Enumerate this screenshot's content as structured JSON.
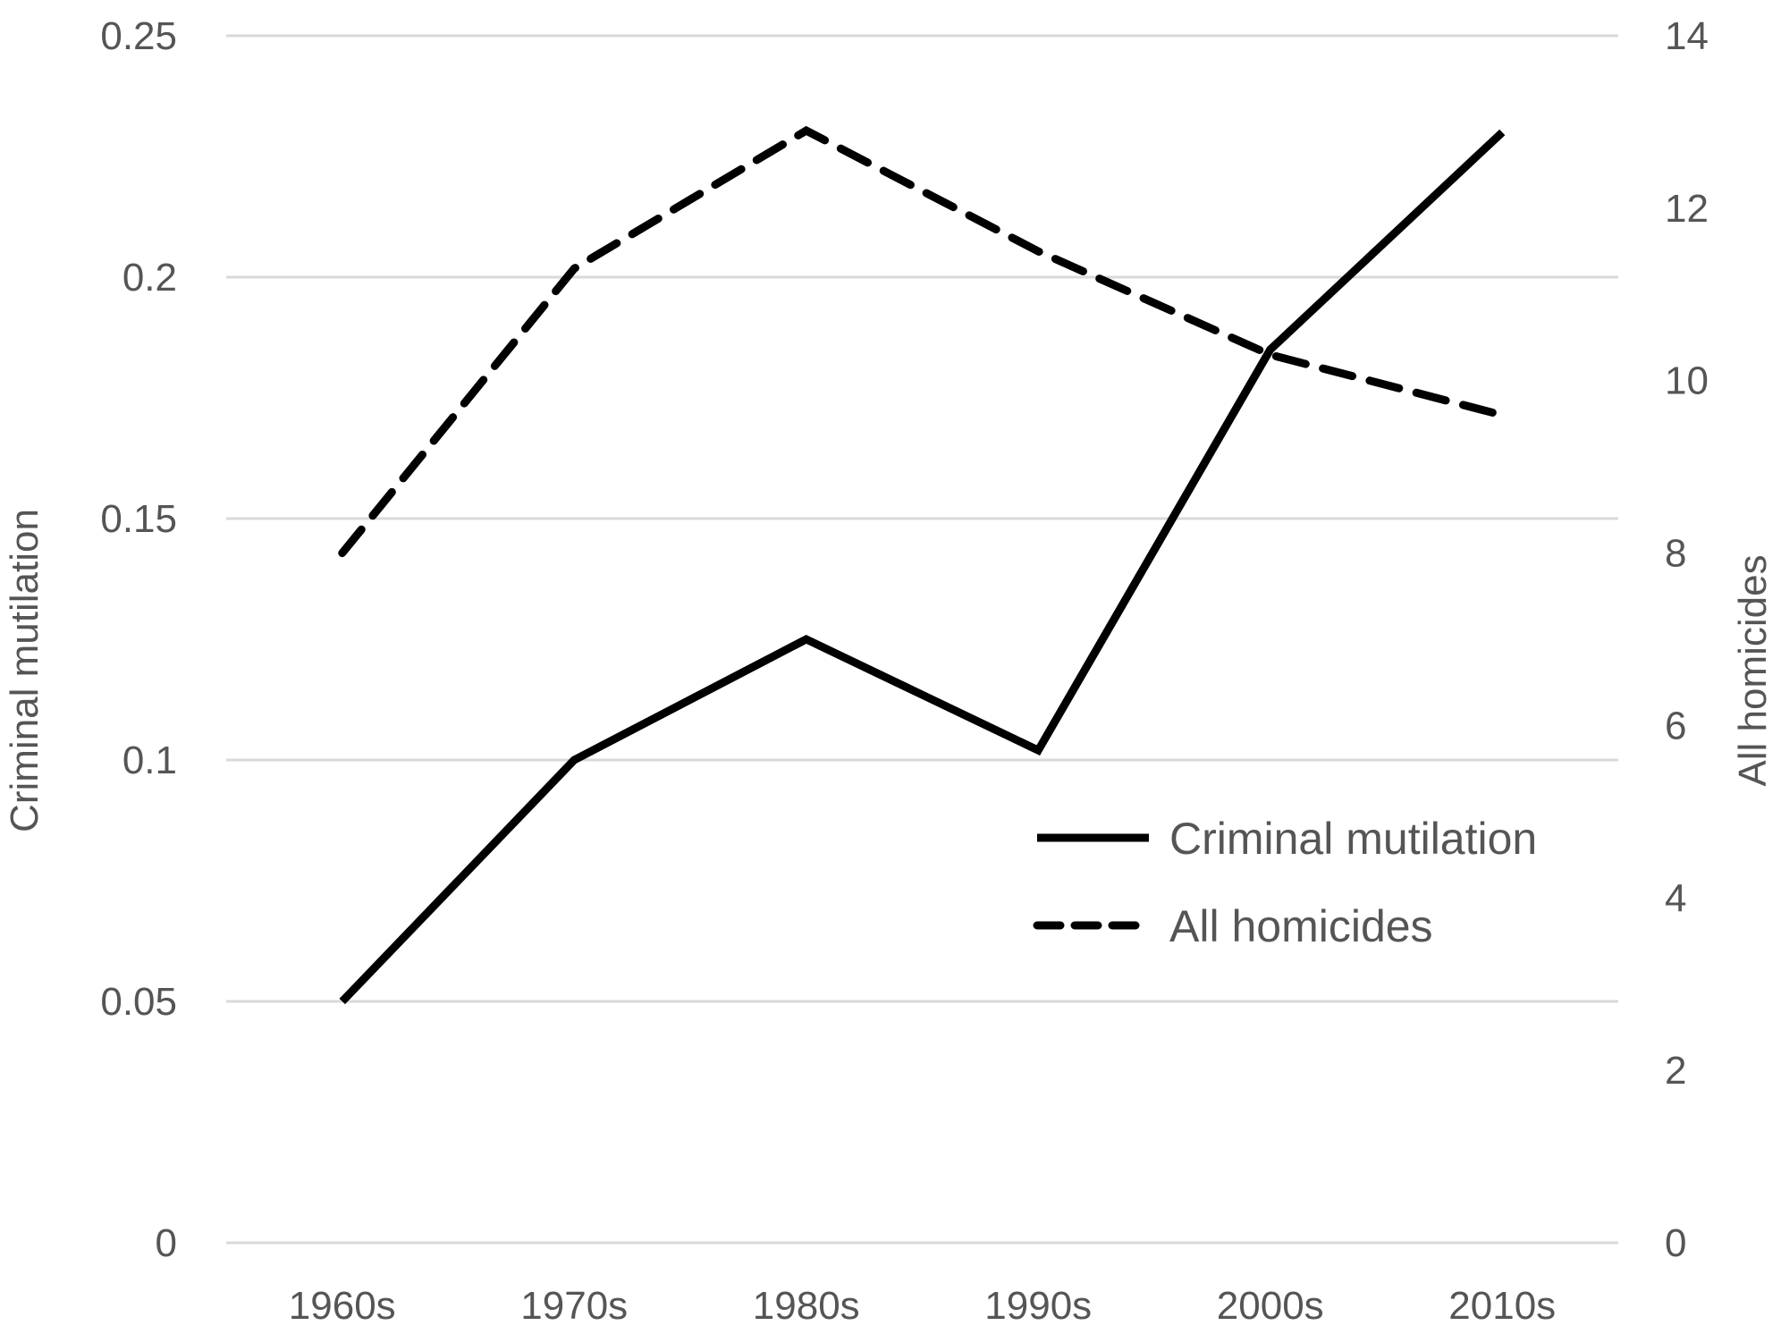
{
  "chart_data": {
    "type": "line",
    "categories": [
      "1960s",
      "1970s",
      "1980s",
      "1990s",
      "2000s",
      "2010s"
    ],
    "series": [
      {
        "name": "Criminal mutilation",
        "axis": "left",
        "style": "solid",
        "color": "#000000",
        "values": [
          0.05,
          0.1,
          0.125,
          0.102,
          0.185,
          0.23
        ]
      },
      {
        "name": "All homicides",
        "axis": "right",
        "style": "dashed",
        "color": "#000000",
        "values": [
          8.0,
          11.3,
          12.9,
          11.5,
          10.3,
          9.6
        ]
      }
    ],
    "y_left": {
      "label": "Criminal mutilation",
      "range": [
        0,
        0.25
      ],
      "ticks": [
        "0",
        "0.05",
        "0.1",
        "0.15",
        "0.2",
        "0.25"
      ]
    },
    "y_right": {
      "label": "All homicides",
      "range": [
        0,
        14
      ],
      "ticks": [
        "0",
        "2",
        "4",
        "6",
        "8",
        "10",
        "12",
        "14"
      ]
    },
    "grid": true,
    "legend_position": "inside-right"
  }
}
